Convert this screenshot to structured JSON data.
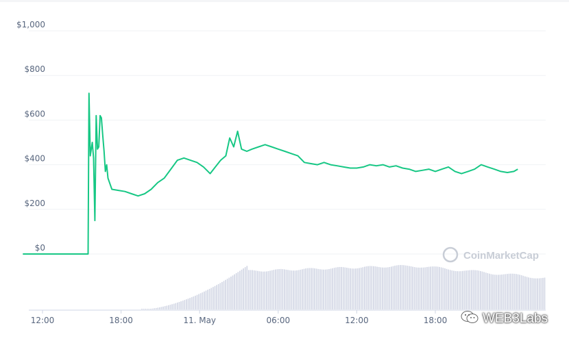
{
  "chart_data": {
    "type": "line",
    "y_tick_labels": [
      "$0",
      "$200",
      "$400",
      "$600",
      "$800",
      "$1,000"
    ],
    "x_tick_labels": [
      "12:00",
      "18:00",
      "11. May",
      "06:00",
      "12:00",
      "18:00"
    ],
    "ylim": [
      0,
      1000
    ],
    "x_unit": "hours",
    "x_range_hours": [
      10.5,
      46.0
    ],
    "x_ticks_hours": [
      12,
      18,
      24,
      30,
      36,
      42
    ],
    "grid": true,
    "legend": "none",
    "line_color": "#16c784",
    "volume_color": "#d5d9e6",
    "series": [
      {
        "values": [
          {
            "x": 10.5,
            "y": 0
          },
          {
            "x": 15.4,
            "y": 0
          },
          {
            "x": 15.48,
            "y": 0
          },
          {
            "x": 15.55,
            "y": 720
          },
          {
            "x": 15.65,
            "y": 440
          },
          {
            "x": 15.8,
            "y": 500
          },
          {
            "x": 15.9,
            "y": 430
          },
          {
            "x": 16.0,
            "y": 150
          },
          {
            "x": 16.1,
            "y": 620
          },
          {
            "x": 16.2,
            "y": 470
          },
          {
            "x": 16.3,
            "y": 480
          },
          {
            "x": 16.4,
            "y": 620
          },
          {
            "x": 16.5,
            "y": 610
          },
          {
            "x": 16.6,
            "y": 530
          },
          {
            "x": 16.7,
            "y": 460
          },
          {
            "x": 16.8,
            "y": 370
          },
          {
            "x": 16.9,
            "y": 400
          },
          {
            "x": 17.0,
            "y": 340
          },
          {
            "x": 17.3,
            "y": 290
          },
          {
            "x": 17.8,
            "y": 285
          },
          {
            "x": 18.3,
            "y": 280
          },
          {
            "x": 18.8,
            "y": 270
          },
          {
            "x": 19.3,
            "y": 260
          },
          {
            "x": 19.8,
            "y": 270
          },
          {
            "x": 20.3,
            "y": 290
          },
          {
            "x": 20.8,
            "y": 320
          },
          {
            "x": 21.3,
            "y": 340
          },
          {
            "x": 21.8,
            "y": 380
          },
          {
            "x": 22.3,
            "y": 420
          },
          {
            "x": 22.8,
            "y": 430
          },
          {
            "x": 23.3,
            "y": 420
          },
          {
            "x": 23.8,
            "y": 410
          },
          {
            "x": 24.3,
            "y": 390
          },
          {
            "x": 24.8,
            "y": 360
          },
          {
            "x": 25.2,
            "y": 390
          },
          {
            "x": 25.6,
            "y": 420
          },
          {
            "x": 26.0,
            "y": 440
          },
          {
            "x": 26.3,
            "y": 520
          },
          {
            "x": 26.6,
            "y": 480
          },
          {
            "x": 26.9,
            "y": 550
          },
          {
            "x": 27.2,
            "y": 470
          },
          {
            "x": 27.6,
            "y": 460
          },
          {
            "x": 28.0,
            "y": 470
          },
          {
            "x": 28.5,
            "y": 480
          },
          {
            "x": 29.0,
            "y": 490
          },
          {
            "x": 29.5,
            "y": 480
          },
          {
            "x": 30.0,
            "y": 470
          },
          {
            "x": 30.5,
            "y": 460
          },
          {
            "x": 31.0,
            "y": 450
          },
          {
            "x": 31.5,
            "y": 440
          },
          {
            "x": 32.0,
            "y": 410
          },
          {
            "x": 32.5,
            "y": 405
          },
          {
            "x": 33.0,
            "y": 400
          },
          {
            "x": 33.5,
            "y": 410
          },
          {
            "x": 34.0,
            "y": 400
          },
          {
            "x": 34.5,
            "y": 395
          },
          {
            "x": 35.0,
            "y": 390
          },
          {
            "x": 35.5,
            "y": 385
          },
          {
            "x": 36.0,
            "y": 385
          },
          {
            "x": 36.5,
            "y": 390
          },
          {
            "x": 37.0,
            "y": 400
          },
          {
            "x": 37.5,
            "y": 395
          },
          {
            "x": 38.0,
            "y": 400
          },
          {
            "x": 38.5,
            "y": 390
          },
          {
            "x": 39.0,
            "y": 395
          },
          {
            "x": 39.5,
            "y": 385
          },
          {
            "x": 40.0,
            "y": 380
          },
          {
            "x": 40.5,
            "y": 370
          },
          {
            "x": 41.0,
            "y": 375
          },
          {
            "x": 41.5,
            "y": 380
          },
          {
            "x": 42.0,
            "y": 370
          },
          {
            "x": 42.5,
            "y": 380
          },
          {
            "x": 43.0,
            "y": 390
          },
          {
            "x": 43.5,
            "y": 370
          },
          {
            "x": 44.0,
            "y": 360
          },
          {
            "x": 44.5,
            "y": 370
          },
          {
            "x": 45.0,
            "y": 380
          },
          {
            "x": 45.5,
            "y": 400
          },
          {
            "x": 46.0,
            "y": 390
          },
          {
            "x": 46.5,
            "y": 380
          },
          {
            "x": 47.0,
            "y": 370
          },
          {
            "x": 47.5,
            "y": 365
          },
          {
            "x": 48.0,
            "y": 370
          },
          {
            "x": 48.3,
            "y": 380
          }
        ]
      }
    ]
  },
  "watermark": {
    "brand": "CoinMarketCap"
  },
  "overlay": {
    "source": "WEB3Labs"
  }
}
